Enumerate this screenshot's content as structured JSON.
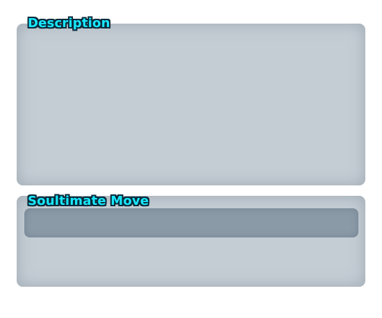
{
  "description": {
    "title": "Description",
    "text": ""
  },
  "soultimate": {
    "title": "Soultimate Move",
    "move_name": "",
    "move_text": ""
  },
  "colors": {
    "panel": "#c4cdd4",
    "move_bar": "#8a9aa7",
    "title_text": "#18e8ff",
    "title_outline": "#0a2a3a"
  }
}
